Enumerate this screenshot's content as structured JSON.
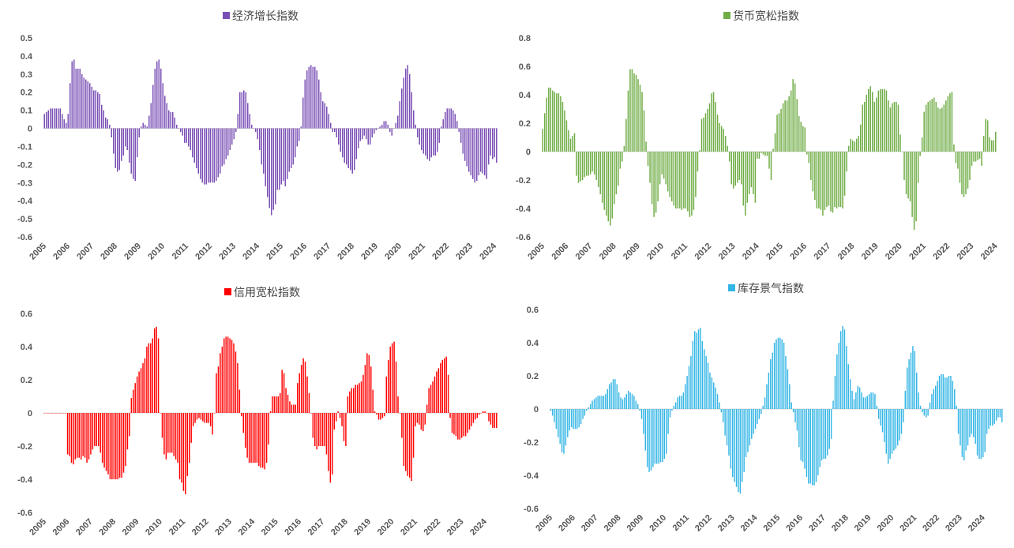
{
  "chart_data": [
    {
      "type": "bar",
      "title": "经济增长指数",
      "series_name": "经济增长指数",
      "color": "#7a4fb5",
      "x_start": "2005-01",
      "x_end": "2024-07",
      "ylim": [
        -0.6,
        0.5
      ],
      "y_ticks": [
        "0.5",
        "0.4",
        "0.3",
        "0.2",
        "0.1",
        "0",
        "-0.1",
        "-0.2",
        "-0.3",
        "-0.4",
        "-0.5",
        "-0.6"
      ],
      "x_ticks": [
        "2005",
        "2006",
        "2007",
        "2008",
        "2009",
        "2010",
        "2011",
        "2012",
        "2013",
        "2014",
        "2015",
        "2016",
        "2017",
        "2018",
        "2019",
        "2020",
        "2021",
        "2022",
        "2023",
        "2024"
      ],
      "values": [
        0.08,
        0.09,
        0.1,
        0.11,
        0.11,
        0.11,
        0.11,
        0.11,
        0.11,
        0.08,
        0.05,
        0.03,
        0.08,
        0.25,
        0.37,
        0.38,
        0.33,
        0.33,
        0.33,
        0.3,
        0.28,
        0.27,
        0.26,
        0.25,
        0.23,
        0.21,
        0.21,
        0.2,
        0.19,
        0.13,
        0.1,
        0.06,
        0.05,
        0.02,
        -0.05,
        -0.14,
        -0.22,
        -0.24,
        -0.23,
        -0.18,
        -0.15,
        -0.1,
        -0.12,
        -0.19,
        -0.25,
        -0.28,
        -0.29,
        -0.16,
        -0.05,
        0.01,
        0.03,
        0.02,
        0.01,
        0.07,
        0.14,
        0.24,
        0.33,
        0.37,
        0.38,
        0.33,
        0.25,
        0.18,
        0.14,
        0.1,
        0.09,
        0.09,
        0.06,
        0.02,
        0.0,
        -0.02,
        -0.04,
        -0.08,
        -0.08,
        -0.1,
        -0.12,
        -0.16,
        -0.19,
        -0.22,
        -0.25,
        -0.28,
        -0.3,
        -0.31,
        -0.31,
        -0.3,
        -0.3,
        -0.3,
        -0.3,
        -0.29,
        -0.27,
        -0.25,
        -0.21,
        -0.2,
        -0.17,
        -0.15,
        -0.12,
        -0.09,
        -0.06,
        -0.02,
        0.08,
        0.2,
        0.2,
        0.21,
        0.2,
        0.14,
        0.08,
        0.02,
        0.0,
        -0.02,
        -0.06,
        -0.12,
        -0.2,
        -0.25,
        -0.32,
        -0.38,
        -0.44,
        -0.48,
        -0.45,
        -0.42,
        -0.34,
        -0.34,
        -0.31,
        -0.29,
        -0.32,
        -0.28,
        -0.24,
        -0.22,
        -0.2,
        -0.16,
        -0.1,
        -0.07,
        0.01,
        0.17,
        0.27,
        0.32,
        0.34,
        0.35,
        0.34,
        0.34,
        0.32,
        0.27,
        0.2,
        0.15,
        0.14,
        0.12,
        0.08,
        0.03,
        -0.02,
        -0.02,
        -0.05,
        -0.09,
        -0.13,
        -0.16,
        -0.19,
        -0.2,
        -0.22,
        -0.23,
        -0.25,
        -0.23,
        -0.17,
        -0.11,
        -0.07,
        -0.06,
        -0.04,
        -0.06,
        -0.09,
        -0.09,
        -0.05,
        -0.03,
        -0.01,
        0.0,
        0.01,
        0.02,
        0.04,
        0.04,
        0.02,
        -0.02,
        -0.04,
        0.0,
        0.03,
        0.07,
        0.15,
        0.22,
        0.28,
        0.33,
        0.35,
        0.3,
        0.2,
        0.1,
        0.02,
        -0.05,
        -0.09,
        -0.12,
        -0.14,
        -0.15,
        -0.17,
        -0.18,
        -0.16,
        -0.15,
        -0.15,
        -0.13,
        -0.08,
        0.01,
        0.05,
        0.09,
        0.11,
        0.11,
        0.11,
        0.1,
        0.08,
        0.04,
        -0.02,
        -0.08,
        -0.14,
        -0.18,
        -0.21,
        -0.24,
        -0.26,
        -0.28,
        -0.3,
        -0.29,
        -0.26,
        -0.24,
        -0.25,
        -0.26,
        -0.28,
        -0.2,
        -0.15,
        -0.17,
        -0.16,
        -0.19
      ]
    },
    {
      "type": "bar",
      "title": "货币宽松指数",
      "series_name": "货币宽松指数",
      "color": "#70ad47",
      "x_start": "2005-01",
      "x_end": "2024-07",
      "ylim": [
        -0.6,
        0.8
      ],
      "y_ticks": [
        "0.8",
        "0.6",
        "0.4",
        "0.2",
        "0",
        "-0.2",
        "-0.4",
        "-0.6"
      ],
      "x_ticks": [
        "2005",
        "2006",
        "2007",
        "2008",
        "2009",
        "2010",
        "2011",
        "2012",
        "2013",
        "2014",
        "2015",
        "2016",
        "2017",
        "2018",
        "2019",
        "2020",
        "2021",
        "2022",
        "2023",
        "2024"
      ],
      "values": [
        0.16,
        0.27,
        0.38,
        0.45,
        0.45,
        0.43,
        0.42,
        0.41,
        0.41,
        0.39,
        0.35,
        0.29,
        0.22,
        0.15,
        0.09,
        0.11,
        0.13,
        -0.17,
        -0.22,
        -0.21,
        -0.2,
        -0.18,
        -0.17,
        -0.17,
        -0.16,
        -0.14,
        -0.16,
        -0.2,
        -0.25,
        -0.3,
        -0.36,
        -0.41,
        -0.45,
        -0.49,
        -0.52,
        -0.47,
        -0.37,
        -0.3,
        -0.24,
        -0.12,
        -0.07,
        0.04,
        0.23,
        0.43,
        0.58,
        0.58,
        0.55,
        0.54,
        0.51,
        0.47,
        0.42,
        0.29,
        0.07,
        -0.1,
        -0.22,
        -0.37,
        -0.46,
        -0.43,
        -0.35,
        -0.23,
        -0.16,
        -0.19,
        -0.23,
        -0.28,
        -0.32,
        -0.35,
        -0.38,
        -0.4,
        -0.4,
        -0.4,
        -0.41,
        -0.4,
        -0.4,
        -0.42,
        -0.46,
        -0.45,
        -0.41,
        -0.32,
        -0.14,
        0.01,
        0.23,
        0.24,
        0.27,
        0.3,
        0.34,
        0.41,
        0.42,
        0.35,
        0.26,
        0.2,
        0.18,
        0.16,
        0.11,
        0.04,
        -0.07,
        -0.23,
        -0.26,
        -0.24,
        -0.22,
        -0.2,
        -0.23,
        -0.38,
        -0.45,
        -0.36,
        -0.3,
        -0.25,
        -0.3,
        -0.36,
        -0.05,
        -0.05,
        -0.01,
        -0.02,
        -0.03,
        -0.03,
        -0.12,
        -0.2,
        0.02,
        0.13,
        0.26,
        0.27,
        0.3,
        0.34,
        0.36,
        0.36,
        0.39,
        0.43,
        0.51,
        0.48,
        0.37,
        0.25,
        0.21,
        0.18,
        0.17,
        -0.02,
        -0.08,
        -0.2,
        -0.28,
        -0.34,
        -0.4,
        -0.4,
        -0.41,
        -0.45,
        -0.41,
        -0.39,
        -0.38,
        -0.42,
        -0.43,
        -0.39,
        -0.4,
        -0.39,
        -0.39,
        -0.4,
        -0.31,
        -0.14,
        0.04,
        0.09,
        0.08,
        0.07,
        0.09,
        0.11,
        0.19,
        0.33,
        0.35,
        0.4,
        0.44,
        0.46,
        0.42,
        0.35,
        0.38,
        0.43,
        0.44,
        0.44,
        0.44,
        0.43,
        0.36,
        0.31,
        0.34,
        0.35,
        0.35,
        0.33,
        0.12,
        0.0,
        -0.2,
        -0.3,
        -0.33,
        -0.35,
        -0.46,
        -0.55,
        -0.49,
        -0.22,
        -0.03,
        0.1,
        0.28,
        0.33,
        0.35,
        0.36,
        0.37,
        0.38,
        0.35,
        0.31,
        0.3,
        0.31,
        0.33,
        0.36,
        0.39,
        0.41,
        0.42,
        0.05,
        -0.08,
        -0.12,
        -0.22,
        -0.3,
        -0.32,
        -0.3,
        -0.26,
        -0.2,
        -0.1,
        -0.07,
        -0.07,
        -0.06,
        -0.05,
        -0.1,
        0.11,
        0.23,
        0.22,
        0.1,
        0.08,
        0.08,
        0.14
      ]
    },
    {
      "type": "bar",
      "title": "信用宽松指数",
      "series_name": "信用宽松指数",
      "color": "#ff0000",
      "x_start": "2005-01",
      "x_end": "2024-07",
      "ylim": [
        -0.6,
        0.6
      ],
      "y_ticks": [
        "0.6",
        "0.4",
        "0.2",
        "0",
        "-0.2",
        "-0.4",
        "-0.6"
      ],
      "x_ticks": [
        "2005",
        "2006",
        "2007",
        "2008",
        "2009",
        "2010",
        "2011",
        "2012",
        "2013",
        "2014",
        "2015",
        "2016",
        "2017",
        "2018",
        "2019",
        "2020",
        "2021",
        "2022",
        "2023",
        "2024"
      ],
      "values": [
        0.0,
        0.0,
        0.0,
        0.0,
        0.0,
        0.0,
        0.0,
        0.0,
        0.0,
        0.0,
        0.0,
        0.0,
        -0.25,
        -0.26,
        -0.3,
        -0.31,
        -0.28,
        -0.27,
        -0.27,
        -0.28,
        -0.26,
        -0.27,
        -0.3,
        -0.28,
        -0.25,
        -0.22,
        -0.2,
        -0.2,
        -0.2,
        -0.24,
        -0.3,
        -0.33,
        -0.35,
        -0.37,
        -0.4,
        -0.4,
        -0.4,
        -0.4,
        -0.4,
        -0.39,
        -0.39,
        -0.36,
        -0.32,
        -0.22,
        -0.14,
        0.09,
        0.14,
        0.18,
        0.22,
        0.25,
        0.27,
        0.3,
        0.33,
        0.4,
        0.42,
        0.42,
        0.45,
        0.51,
        0.52,
        0.45,
        0.0,
        -0.15,
        -0.25,
        -0.28,
        -0.24,
        -0.24,
        -0.24,
        -0.26,
        -0.28,
        -0.3,
        -0.4,
        -0.42,
        -0.47,
        -0.49,
        -0.38,
        -0.3,
        -0.18,
        -0.08,
        -0.06,
        -0.04,
        -0.03,
        -0.04,
        -0.05,
        -0.06,
        -0.06,
        -0.06,
        -0.08,
        -0.13,
        0.0,
        0.24,
        0.28,
        0.36,
        0.4,
        0.45,
        0.46,
        0.46,
        0.45,
        0.44,
        0.42,
        0.37,
        0.3,
        0.14,
        -0.02,
        -0.12,
        -0.21,
        -0.27,
        -0.3,
        -0.3,
        -0.3,
        -0.3,
        -0.3,
        -0.32,
        -0.33,
        -0.33,
        -0.34,
        -0.3,
        -0.19,
        0.01,
        0.1,
        0.1,
        0.1,
        0.1,
        0.12,
        0.26,
        0.24,
        0.15,
        0.11,
        0.07,
        0.05,
        0.05,
        0.05,
        0.18,
        0.24,
        0.29,
        0.33,
        0.31,
        0.22,
        0.12,
        0.0,
        -0.15,
        -0.2,
        -0.22,
        -0.2,
        -0.2,
        -0.2,
        -0.2,
        -0.25,
        -0.35,
        -0.42,
        -0.37,
        -0.1,
        -0.05,
        0.01,
        -0.03,
        -0.08,
        -0.17,
        -0.2,
        0.1,
        0.13,
        0.15,
        0.15,
        0.17,
        0.17,
        0.18,
        0.19,
        0.23,
        0.29,
        0.36,
        0.35,
        0.28,
        0.14,
        0.01,
        -0.01,
        -0.04,
        -0.04,
        -0.03,
        -0.02,
        0.22,
        0.32,
        0.4,
        0.42,
        0.43,
        0.31,
        0.1,
        0.0,
        -0.15,
        -0.32,
        -0.35,
        -0.38,
        -0.39,
        -0.41,
        -0.27,
        -0.08,
        -0.06,
        -0.07,
        -0.1,
        -0.11,
        -0.07,
        0.05,
        0.15,
        0.17,
        0.19,
        0.22,
        0.25,
        0.27,
        0.3,
        0.32,
        0.33,
        0.34,
        0.23,
        -0.03,
        -0.12,
        -0.13,
        -0.14,
        -0.16,
        -0.16,
        -0.15,
        -0.14,
        -0.14,
        -0.12,
        -0.1,
        -0.08,
        -0.06,
        -0.04,
        -0.03,
        -0.01,
        0.0,
        0.01,
        0.01,
        0.0,
        -0.05,
        -0.07,
        -0.09,
        -0.09,
        -0.09
      ]
    },
    {
      "type": "bar",
      "title": "库存景气指数",
      "series_name": "库存景气指数",
      "color": "#33b5e5",
      "x_start": "2005-01",
      "x_end": "2024-07",
      "ylim": [
        -0.6,
        0.6
      ],
      "y_ticks": [
        "0.6",
        "0.4",
        "0.2",
        "0",
        "-0.2",
        "-0.4",
        "-0.6"
      ],
      "x_ticks": [
        "2005",
        "2006",
        "2007",
        "2008",
        "2009",
        "2010",
        "2011",
        "2012",
        "2013",
        "2014",
        "2015",
        "2016",
        "2017",
        "2018",
        "2019",
        "2020",
        "2021",
        "2022",
        "2023",
        "2024"
      ],
      "values": [
        -0.01,
        -0.04,
        -0.08,
        -0.12,
        -0.17,
        -0.21,
        -0.26,
        -0.27,
        -0.22,
        -0.17,
        -0.13,
        -0.11,
        -0.12,
        -0.12,
        -0.12,
        -0.11,
        -0.09,
        -0.06,
        -0.04,
        -0.01,
        0.01,
        0.03,
        0.05,
        0.06,
        0.07,
        0.08,
        0.08,
        0.08,
        0.08,
        0.09,
        0.12,
        0.15,
        0.16,
        0.18,
        0.18,
        0.15,
        0.1,
        0.07,
        0.06,
        0.07,
        0.09,
        0.11,
        0.1,
        0.09,
        0.08,
        0.05,
        0.03,
        -0.01,
        -0.06,
        -0.15,
        -0.25,
        -0.35,
        -0.38,
        -0.37,
        -0.35,
        -0.33,
        -0.33,
        -0.33,
        -0.32,
        -0.32,
        -0.3,
        -0.27,
        -0.15,
        -0.05,
        -0.01,
        0.02,
        0.04,
        0.07,
        0.08,
        0.08,
        0.1,
        0.15,
        0.2,
        0.26,
        0.32,
        0.41,
        0.47,
        0.46,
        0.48,
        0.49,
        0.41,
        0.36,
        0.32,
        0.28,
        0.22,
        0.19,
        0.16,
        0.13,
        0.09,
        0.04,
        -0.02,
        -0.08,
        -0.16,
        -0.22,
        -0.28,
        -0.36,
        -0.41,
        -0.44,
        -0.47,
        -0.5,
        -0.51,
        -0.44,
        -0.38,
        -0.29,
        -0.26,
        -0.22,
        -0.18,
        -0.15,
        -0.12,
        -0.09,
        -0.06,
        -0.03,
        0.02,
        0.07,
        0.15,
        0.22,
        0.3,
        0.34,
        0.4,
        0.42,
        0.43,
        0.43,
        0.42,
        0.4,
        0.32,
        0.24,
        0.15,
        0.04,
        -0.02,
        -0.08,
        -0.13,
        -0.23,
        -0.31,
        -0.32,
        -0.36,
        -0.41,
        -0.45,
        -0.45,
        -0.46,
        -0.46,
        -0.44,
        -0.4,
        -0.35,
        -0.31,
        -0.3,
        -0.3,
        -0.28,
        -0.24,
        -0.18,
        0.05,
        0.2,
        0.33,
        0.4,
        0.47,
        0.5,
        0.48,
        0.38,
        0.27,
        0.18,
        0.11,
        0.06,
        0.1,
        0.14,
        0.13,
        0.1,
        0.07,
        0.07,
        0.08,
        0.09,
        0.1,
        0.1,
        0.09,
        0.02,
        -0.06,
        -0.1,
        -0.14,
        -0.2,
        -0.27,
        -0.33,
        -0.3,
        -0.27,
        -0.25,
        -0.24,
        -0.22,
        -0.19,
        -0.15,
        -0.08,
        0.11,
        0.25,
        0.3,
        0.34,
        0.38,
        0.35,
        0.22,
        0.1,
        0.02,
        -0.02,
        -0.04,
        -0.05,
        -0.04,
        0.04,
        0.09,
        0.12,
        0.14,
        0.17,
        0.2,
        0.21,
        0.21,
        0.19,
        0.19,
        0.2,
        0.2,
        0.17,
        0.12,
        0.02,
        -0.15,
        -0.22,
        -0.29,
        -0.31,
        -0.25,
        -0.22,
        -0.17,
        -0.15,
        -0.17,
        -0.21,
        -0.28,
        -0.3,
        -0.3,
        -0.29,
        -0.26,
        -0.15,
        -0.12,
        -0.1,
        -0.1,
        -0.09,
        -0.07,
        -0.05,
        -0.05,
        -0.08
      ]
    }
  ]
}
